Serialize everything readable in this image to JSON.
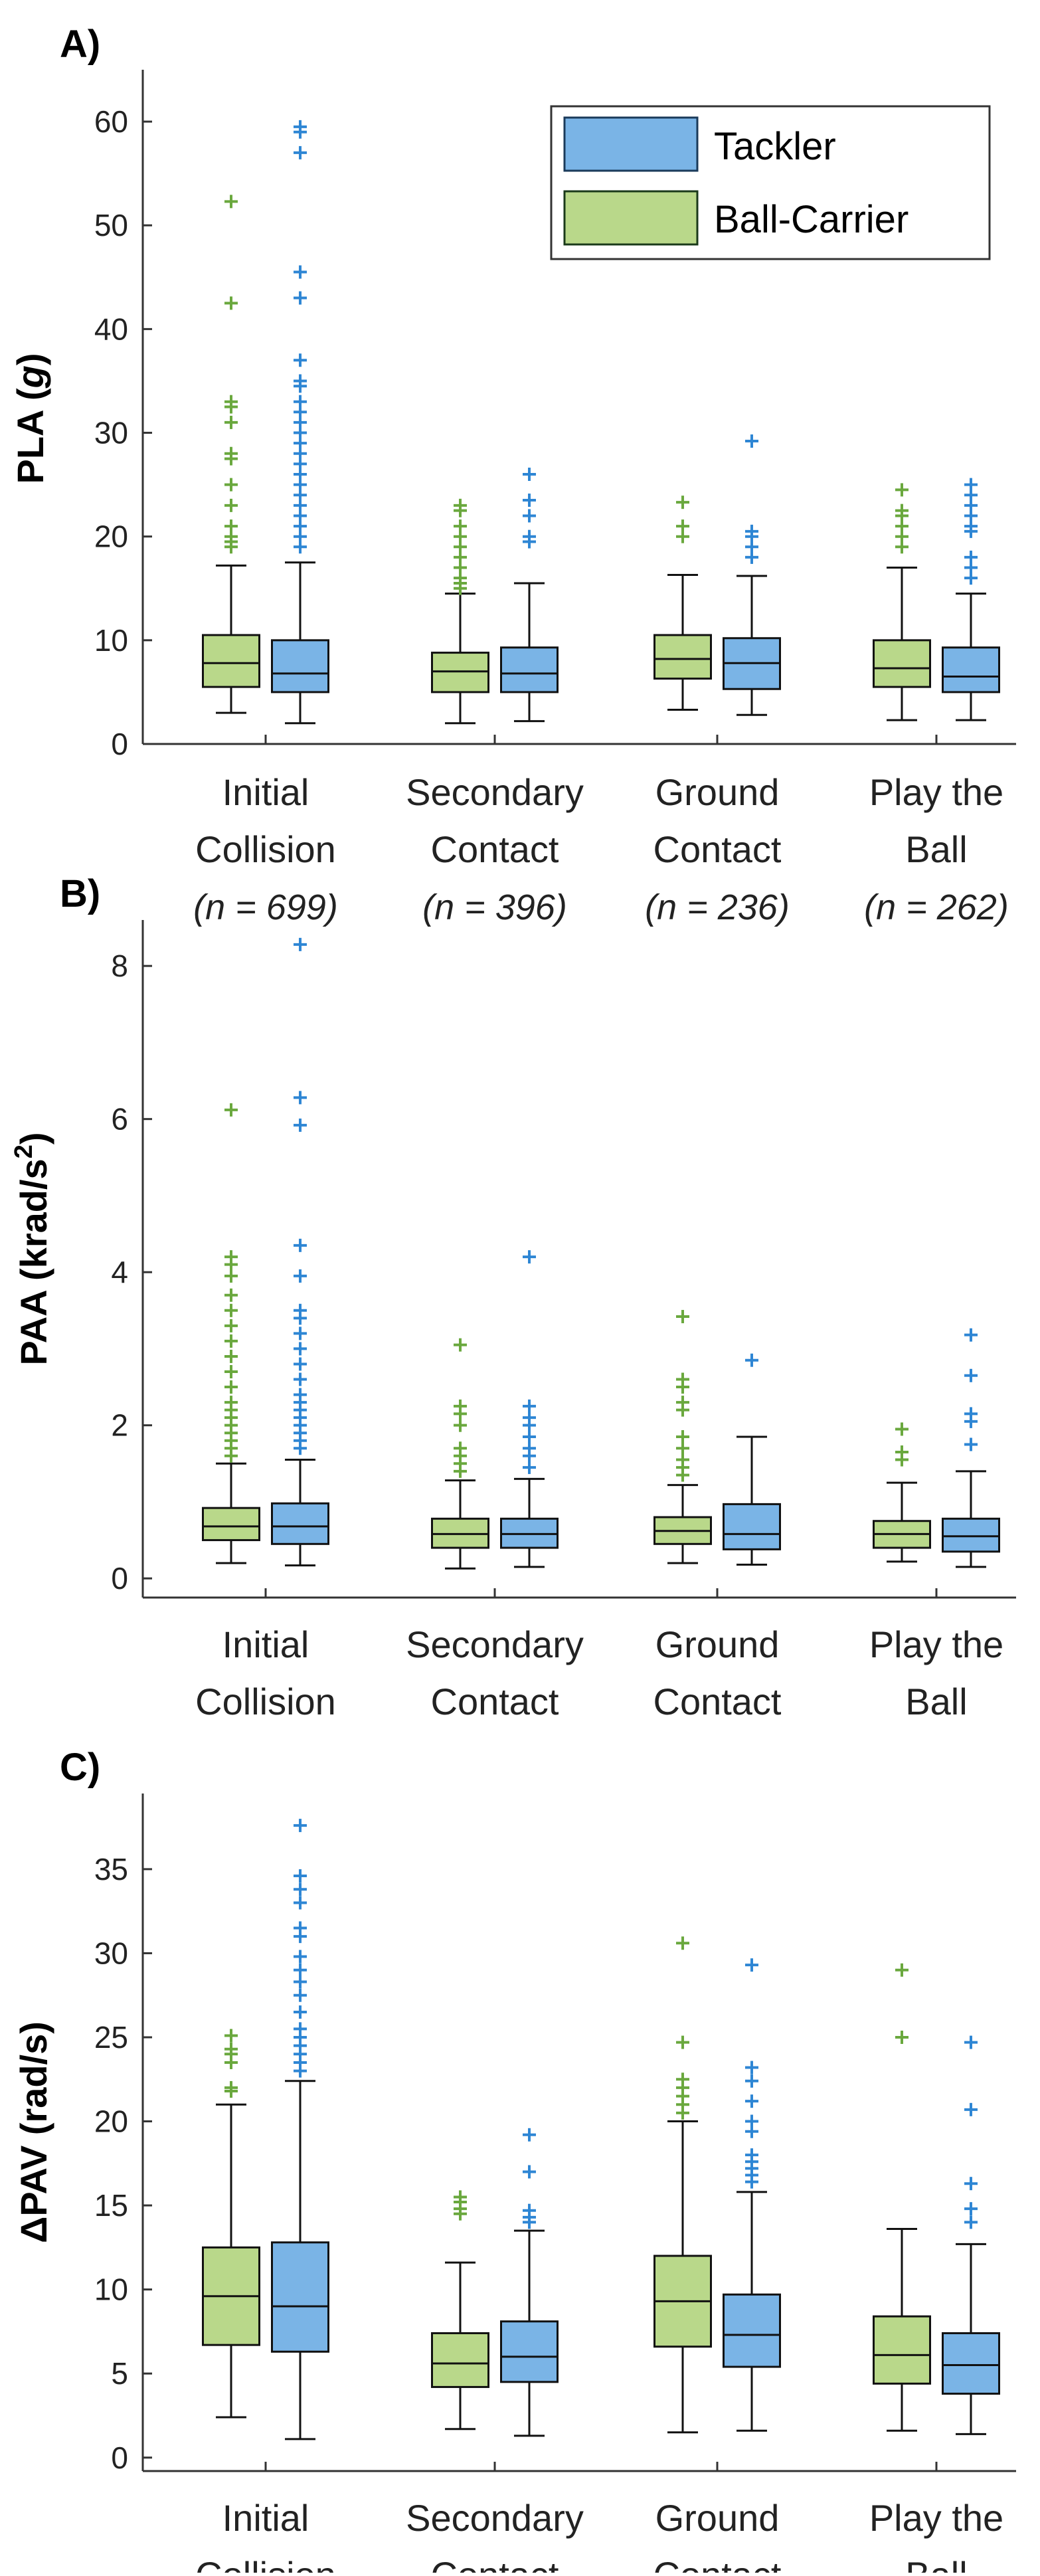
{
  "legend": {
    "position": "top-right",
    "items": [
      {
        "label": "Tackler",
        "color": "#7ab4e6",
        "edge": "#1a3a5a"
      },
      {
        "label": "Ball-Carrier",
        "color": "#b9d88a",
        "edge": "#1a3a1a"
      }
    ]
  },
  "colors": {
    "tackler_fill": "#7ab4e6",
    "carrier_fill": "#b9d88a",
    "tackler_outlier": "#2e86d4",
    "carrier_outlier": "#6aa83e",
    "axis": "#333333"
  },
  "chart_data": [
    {
      "type": "box",
      "panel_label": "A)",
      "ylabel_main": "PLA (",
      "ylabel_italic": "g",
      "ylabel_close": ")",
      "yticks": [
        0,
        10,
        20,
        30,
        40,
        50,
        60
      ],
      "ylim": [
        0,
        65
      ],
      "categories": [
        [
          "Initial",
          "Collision"
        ],
        [
          "Secondary",
          "Contact"
        ],
        [
          "Ground",
          "Contact"
        ],
        [
          "Play the",
          "Ball"
        ]
      ],
      "n_labels": [
        "(n = 699)",
        "(n = 396)",
        "(n = 236)",
        "(n = 262)"
      ],
      "series": [
        {
          "name": "Ball-Carrier",
          "boxes": [
            {
              "whislo": 3,
              "q1": 5.5,
              "med": 7.8,
              "q3": 10.5,
              "whishi": 17.2,
              "fliers": [
                19,
                19.5,
                20,
                21,
                23,
                25,
                27.5,
                28,
                31,
                32.5,
                33,
                42.5,
                52.3
              ]
            },
            {
              "whislo": 2,
              "q1": 5,
              "med": 7,
              "q3": 8.8,
              "whishi": 14.5,
              "fliers": [
                15,
                15.5,
                16,
                17,
                18,
                19,
                20,
                21,
                22.5,
                23
              ]
            },
            {
              "whislo": 3.3,
              "q1": 6.3,
              "med": 8.2,
              "q3": 10.5,
              "whishi": 16.3,
              "fliers": [
                20,
                21,
                23.3
              ]
            },
            {
              "whislo": 2.3,
              "q1": 5.5,
              "med": 7.3,
              "q3": 10,
              "whishi": 17,
              "fliers": [
                19,
                20,
                21,
                22,
                22.5,
                24.5
              ]
            }
          ]
        },
        {
          "name": "Tackler",
          "boxes": [
            {
              "whislo": 2,
              "q1": 5,
              "med": 6.8,
              "q3": 10,
              "whishi": 17.5,
              "fliers": [
                19,
                20,
                21,
                22,
                23,
                24,
                25,
                26,
                27,
                28,
                29,
                30,
                31,
                32,
                33,
                34.5,
                35,
                37,
                43,
                45.5,
                57,
                59,
                59.5
              ]
            },
            {
              "whislo": 2.2,
              "q1": 5,
              "med": 6.8,
              "q3": 9.3,
              "whishi": 15.5,
              "fliers": [
                19.5,
                20,
                22,
                23.5,
                26
              ]
            },
            {
              "whislo": 2.8,
              "q1": 5.3,
              "med": 7.8,
              "q3": 10.2,
              "whishi": 16.2,
              "fliers": [
                18,
                19,
                20,
                20.5,
                29.2
              ]
            },
            {
              "whislo": 2.3,
              "q1": 5,
              "med": 6.5,
              "q3": 9.3,
              "whishi": 14.5,
              "fliers": [
                16,
                17,
                18,
                20.5,
                21,
                22,
                23,
                24,
                25
              ]
            }
          ]
        }
      ]
    },
    {
      "type": "box",
      "panel_label": "B)",
      "ylabel_main": "PAA (krad/s",
      "ylabel_sup": "2",
      "ylabel_close": ")",
      "yticks": [
        0,
        2,
        4,
        6,
        8
      ],
      "ylim": [
        -0.25,
        8.6
      ],
      "categories": [
        [
          "Initial",
          "Collision"
        ],
        [
          "Secondary",
          "Contact"
        ],
        [
          "Ground",
          "Contact"
        ],
        [
          "Play the",
          "Ball"
        ]
      ],
      "series": [
        {
          "name": "Ball-Carrier",
          "boxes": [
            {
              "whislo": 0.2,
              "q1": 0.5,
              "med": 0.68,
              "q3": 0.92,
              "whishi": 1.5,
              "fliers": [
                1.6,
                1.7,
                1.8,
                1.9,
                2.0,
                2.1,
                2.2,
                2.3,
                2.5,
                2.7,
                2.9,
                3.1,
                3.3,
                3.5,
                3.7,
                3.95,
                4.1,
                4.2,
                6.12
              ]
            },
            {
              "whislo": 0.13,
              "q1": 0.4,
              "med": 0.58,
              "q3": 0.78,
              "whishi": 1.28,
              "fliers": [
                1.4,
                1.5,
                1.6,
                1.7,
                2.0,
                2.15,
                2.25,
                3.05
              ]
            },
            {
              "whislo": 0.2,
              "q1": 0.45,
              "med": 0.62,
              "q3": 0.8,
              "whishi": 1.22,
              "fliers": [
                1.35,
                1.45,
                1.55,
                1.7,
                1.85,
                2.2,
                2.3,
                2.5,
                2.6,
                3.42
              ]
            },
            {
              "whislo": 0.22,
              "q1": 0.4,
              "med": 0.58,
              "q3": 0.75,
              "whishi": 1.25,
              "fliers": [
                1.55,
                1.65,
                1.95
              ]
            }
          ]
        },
        {
          "name": "Tackler",
          "boxes": [
            {
              "whislo": 0.17,
              "q1": 0.45,
              "med": 0.68,
              "q3": 0.98,
              "whishi": 1.55,
              "fliers": [
                1.7,
                1.8,
                1.9,
                2.0,
                2.1,
                2.2,
                2.3,
                2.4,
                2.6,
                2.8,
                3.0,
                3.2,
                3.4,
                3.5,
                3.95,
                4.35,
                5.92,
                6.28,
                8.28
              ]
            },
            {
              "whislo": 0.15,
              "q1": 0.4,
              "med": 0.58,
              "q3": 0.78,
              "whishi": 1.3,
              "fliers": [
                1.45,
                1.6,
                1.7,
                1.85,
                2.0,
                2.1,
                2.25,
                4.2
              ]
            },
            {
              "whislo": 0.18,
              "q1": 0.38,
              "med": 0.58,
              "q3": 0.97,
              "whishi": 1.85,
              "fliers": [
                2.85
              ]
            },
            {
              "whislo": 0.15,
              "q1": 0.35,
              "med": 0.55,
              "q3": 0.78,
              "whishi": 1.4,
              "fliers": [
                1.75,
                2.05,
                2.15,
                2.65,
                3.18
              ]
            }
          ]
        }
      ]
    },
    {
      "type": "box",
      "panel_label": "C)",
      "ylabel_main": "ΔPAV (rad/s)",
      "yticks": [
        0,
        5,
        10,
        15,
        20,
        25,
        30,
        35
      ],
      "ylim": [
        -0.8,
        39.5
      ],
      "categories": [
        [
          "Initial",
          "Collision"
        ],
        [
          "Secondary",
          "Contact"
        ],
        [
          "Ground",
          "Contact"
        ],
        [
          "Play the",
          "Ball"
        ]
      ],
      "series": [
        {
          "name": "Ball-Carrier",
          "boxes": [
            {
              "whislo": 2.4,
              "q1": 6.7,
              "med": 9.6,
              "q3": 12.5,
              "whishi": 21,
              "fliers": [
                21.8,
                22,
                23.5,
                24,
                24.3,
                25.1
              ]
            },
            {
              "whislo": 1.7,
              "q1": 4.2,
              "med": 5.6,
              "q3": 7.4,
              "whishi": 11.6,
              "fliers": [
                14.5,
                14.8,
                15.2,
                15.5
              ]
            },
            {
              "whislo": 1.5,
              "q1": 6.6,
              "med": 9.3,
              "q3": 12,
              "whishi": 20,
              "fliers": [
                20.5,
                21,
                21.5,
                22,
                22.5,
                24.7,
                30.6
              ]
            },
            {
              "whislo": 1.6,
              "q1": 4.4,
              "med": 6.1,
              "q3": 8.4,
              "whishi": 13.6,
              "fliers": [
                25,
                29
              ]
            }
          ]
        },
        {
          "name": "Tackler",
          "boxes": [
            {
              "whislo": 1.1,
              "q1": 6.3,
              "med": 9,
              "q3": 12.8,
              "whishi": 22.4,
              "fliers": [
                23,
                23.5,
                24,
                24.5,
                25,
                25.5,
                26.5,
                27.5,
                28.3,
                29,
                29.8,
                31,
                31.5,
                33,
                33.8,
                34.6,
                37.6
              ]
            },
            {
              "whislo": 1.3,
              "q1": 4.5,
              "med": 6,
              "q3": 8.1,
              "whishi": 13.5,
              "fliers": [
                14,
                14.3,
                14.7,
                17,
                19.2
              ]
            },
            {
              "whislo": 1.6,
              "q1": 5.4,
              "med": 7.3,
              "q3": 9.7,
              "whishi": 15.8,
              "fliers": [
                16.4,
                16.8,
                17.2,
                17.6,
                18,
                19.4,
                20,
                21.2,
                22.4,
                23.2,
                29.3
              ]
            },
            {
              "whislo": 1.4,
              "q1": 3.8,
              "med": 5.5,
              "q3": 7.4,
              "whishi": 12.7,
              "fliers": [
                14,
                14.8,
                16.3,
                20.7,
                24.7
              ]
            }
          ]
        }
      ]
    }
  ]
}
